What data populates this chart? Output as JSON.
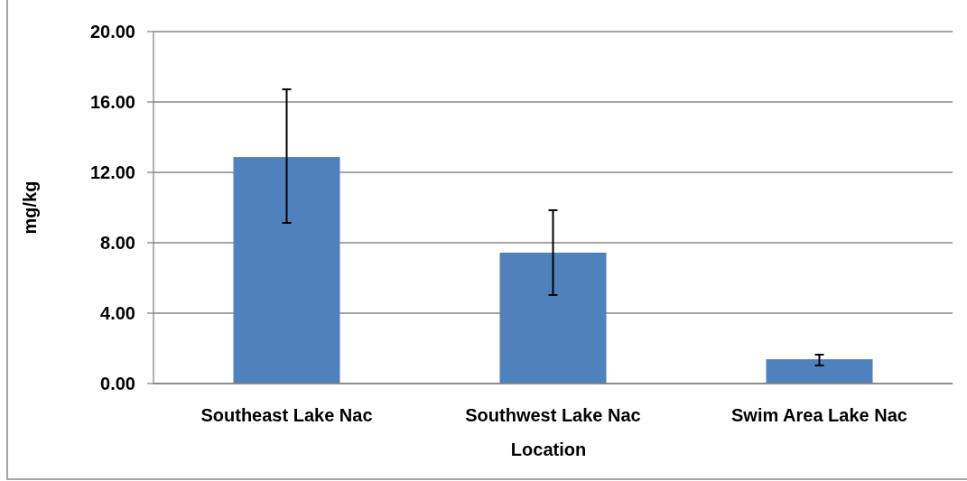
{
  "chart_data": {
    "type": "bar",
    "xlabel": "Location",
    "ylabel": "mg/kg",
    "categories": [
      "Southeast Lake Nac",
      "Southwest Lake Nac",
      "Swim Area Lake Nac"
    ],
    "values": [
      12.87,
      7.44,
      1.38
    ],
    "errors": [
      [
        9.13,
        16.72
      ],
      [
        5.03,
        9.85
      ],
      [
        1.03,
        1.64
      ]
    ],
    "color": "#4f81bd",
    "ylim": [
      0,
      20
    ],
    "yticks": [
      {
        "value": 0,
        "label": "0.00"
      },
      {
        "value": 4,
        "label": "4.00"
      },
      {
        "value": 8,
        "label": "8.00"
      },
      {
        "value": 12,
        "label": "12.00"
      },
      {
        "value": 16,
        "label": "16.00"
      },
      {
        "value": 20,
        "label": "20.00"
      }
    ],
    "grid": "y"
  }
}
